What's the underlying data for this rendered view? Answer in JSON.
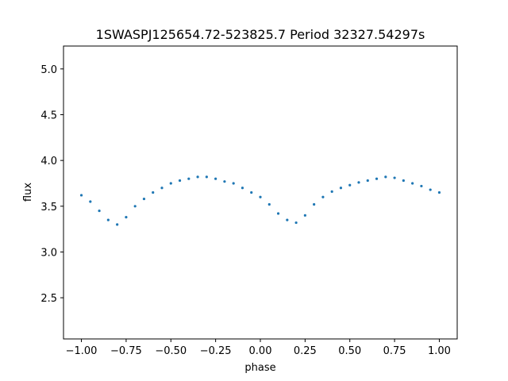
{
  "chart_data": {
    "type": "scatter",
    "title": "1SWASPJ125654.72-523825.7 Period 32327.54297s",
    "xlabel": "phase",
    "ylabel": "flux",
    "xlim": [
      -1.1,
      1.1
    ],
    "ylim": [
      2.05,
      5.25
    ],
    "x_ticks": [
      -1.0,
      -0.75,
      -0.5,
      -0.25,
      0.0,
      0.25,
      0.5,
      0.75,
      1.0
    ],
    "x_tick_labels": [
      "−1.00",
      "−0.75",
      "−0.50",
      "−0.25",
      "0.00",
      "0.25",
      "0.50",
      "0.75",
      "1.00"
    ],
    "y_ticks": [
      2.5,
      3.0,
      3.5,
      4.0,
      4.5,
      5.0
    ],
    "y_tick_labels": [
      "2.5",
      "3.0",
      "3.5",
      "4.0",
      "4.5",
      "5.0"
    ],
    "grid": false,
    "marker_color": "#1f77b4",
    "series": [
      {
        "points": [
          [
            -1.0,
            3.62
          ],
          [
            -0.95,
            3.55
          ],
          [
            -0.9,
            3.45
          ],
          [
            -0.85,
            3.35
          ],
          [
            -0.8,
            3.3
          ],
          [
            -0.75,
            3.38
          ],
          [
            -0.7,
            3.5
          ],
          [
            -0.65,
            3.58
          ],
          [
            -0.6,
            3.65
          ],
          [
            -0.55,
            3.7
          ],
          [
            -0.5,
            3.75
          ],
          [
            -0.45,
            3.78
          ],
          [
            -0.4,
            3.8
          ],
          [
            -0.35,
            3.82
          ],
          [
            -0.3,
            3.82
          ],
          [
            -0.25,
            3.8
          ],
          [
            -0.2,
            3.77
          ],
          [
            -0.15,
            3.75
          ],
          [
            -0.1,
            3.7
          ],
          [
            -0.05,
            3.65
          ],
          [
            0.0,
            3.6
          ],
          [
            0.05,
            3.52
          ],
          [
            0.1,
            3.42
          ],
          [
            0.15,
            3.35
          ],
          [
            0.2,
            3.32
          ],
          [
            0.25,
            3.4
          ],
          [
            0.3,
            3.52
          ],
          [
            0.35,
            3.6
          ],
          [
            0.4,
            3.66
          ],
          [
            0.45,
            3.7
          ],
          [
            0.5,
            3.73
          ],
          [
            0.55,
            3.76
          ],
          [
            0.6,
            3.78
          ],
          [
            0.65,
            3.8
          ],
          [
            0.7,
            3.82
          ],
          [
            0.75,
            3.81
          ],
          [
            0.8,
            3.78
          ],
          [
            0.85,
            3.75
          ],
          [
            0.9,
            3.72
          ],
          [
            0.95,
            3.68
          ],
          [
            1.0,
            3.65
          ]
        ]
      }
    ]
  }
}
